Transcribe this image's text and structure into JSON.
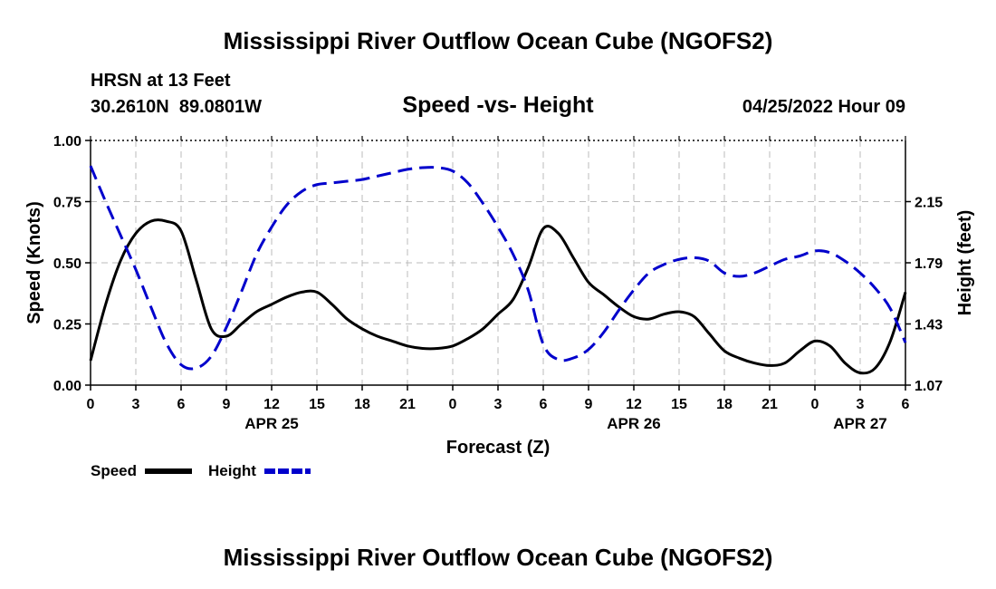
{
  "page": {
    "main_title": "Mississippi River Outflow Ocean Cube (NGOFS2)",
    "bottom_title": "Mississippi River Outflow Ocean Cube (NGOFS2)",
    "station_name": "HRSN at 13 Feet",
    "station_coords": "30.2610N  89.0801W",
    "chart_title": "Speed -vs- Height",
    "datetime": "04/25/2022 Hour 09"
  },
  "chart_data": {
    "type": "line",
    "title": "Speed -vs- Height",
    "xlabel": "Forecast (Z)",
    "ylabel": "Speed (Knots)",
    "y2label": "Height (feet)",
    "grid": true,
    "legend_position": "bottom-left",
    "xlim": [
      0,
      54
    ],
    "ylim": [
      0,
      1
    ],
    "y2lim": [
      1.07,
      2.51
    ],
    "x_ticks": [
      0,
      3,
      6,
      9,
      12,
      15,
      18,
      21,
      24,
      27,
      30,
      33,
      36,
      39,
      42,
      45,
      48,
      51,
      54
    ],
    "x_tick_labels": [
      "0",
      "3",
      "6",
      "9",
      "12",
      "15",
      "18",
      "21",
      "0",
      "3",
      "6",
      "9",
      "12",
      "15",
      "18",
      "21",
      "0",
      "3",
      "6"
    ],
    "date_labels": [
      {
        "x": 12,
        "label": "APR 25"
      },
      {
        "x": 36,
        "label": "APR 26"
      },
      {
        "x": 51,
        "label": "APR 27"
      }
    ],
    "y_ticks": [
      0,
      0.25,
      0.5,
      0.75,
      1.0
    ],
    "y_tick_labels": [
      "0.00",
      "0.25",
      "0.50",
      "0.75",
      "1.00"
    ],
    "y2_ticks": [
      1.07,
      1.43,
      1.79,
      2.15
    ],
    "y2_tick_labels": [
      "1.07",
      "1.43",
      "1.79",
      "2.15"
    ],
    "series": [
      {
        "name": "Speed",
        "axis": "left",
        "color": "#000000",
        "dash": "solid",
        "x": [
          0,
          1,
          2,
          3,
          4,
          5,
          6,
          7,
          8,
          9,
          10,
          11,
          12,
          13,
          14,
          15,
          16,
          17,
          18,
          19,
          20,
          21,
          22,
          23,
          24,
          25,
          26,
          27,
          28,
          29,
          30,
          31,
          32,
          33,
          34,
          35,
          36,
          37,
          38,
          39,
          40,
          41,
          42,
          43,
          44,
          45,
          46,
          47,
          48,
          49,
          50,
          51,
          52,
          53,
          54
        ],
        "values": [
          0.1,
          0.33,
          0.51,
          0.62,
          0.67,
          0.67,
          0.63,
          0.43,
          0.23,
          0.2,
          0.25,
          0.3,
          0.33,
          0.36,
          0.38,
          0.38,
          0.33,
          0.27,
          0.23,
          0.2,
          0.18,
          0.16,
          0.15,
          0.15,
          0.16,
          0.19,
          0.23,
          0.29,
          0.35,
          0.48,
          0.64,
          0.62,
          0.52,
          0.42,
          0.37,
          0.32,
          0.28,
          0.27,
          0.29,
          0.3,
          0.28,
          0.21,
          0.14,
          0.11,
          0.09,
          0.08,
          0.09,
          0.14,
          0.18,
          0.16,
          0.09,
          0.05,
          0.07,
          0.18,
          0.38
        ]
      },
      {
        "name": "Height",
        "axis": "right",
        "color": "#0000cc",
        "dash": "dashed",
        "x": [
          0,
          1,
          2,
          3,
          4,
          5,
          6,
          7,
          8,
          9,
          10,
          11,
          12,
          13,
          14,
          15,
          16,
          17,
          18,
          19,
          20,
          21,
          22,
          23,
          24,
          25,
          26,
          27,
          28,
          29,
          30,
          31,
          32,
          33,
          34,
          35,
          36,
          37,
          38,
          39,
          40,
          41,
          42,
          43,
          44,
          45,
          46,
          47,
          48,
          49,
          50,
          51,
          52,
          53,
          54
        ],
        "values": [
          2.36,
          2.15,
          1.95,
          1.75,
          1.53,
          1.32,
          1.19,
          1.17,
          1.24,
          1.41,
          1.62,
          1.84,
          2.0,
          2.13,
          2.21,
          2.25,
          2.26,
          2.27,
          2.28,
          2.3,
          2.32,
          2.34,
          2.35,
          2.35,
          2.33,
          2.26,
          2.14,
          2.0,
          1.84,
          1.63,
          1.31,
          1.22,
          1.23,
          1.28,
          1.38,
          1.51,
          1.63,
          1.73,
          1.78,
          1.81,
          1.82,
          1.8,
          1.73,
          1.71,
          1.73,
          1.77,
          1.81,
          1.83,
          1.86,
          1.85,
          1.8,
          1.73,
          1.64,
          1.52,
          1.32
        ]
      }
    ]
  }
}
